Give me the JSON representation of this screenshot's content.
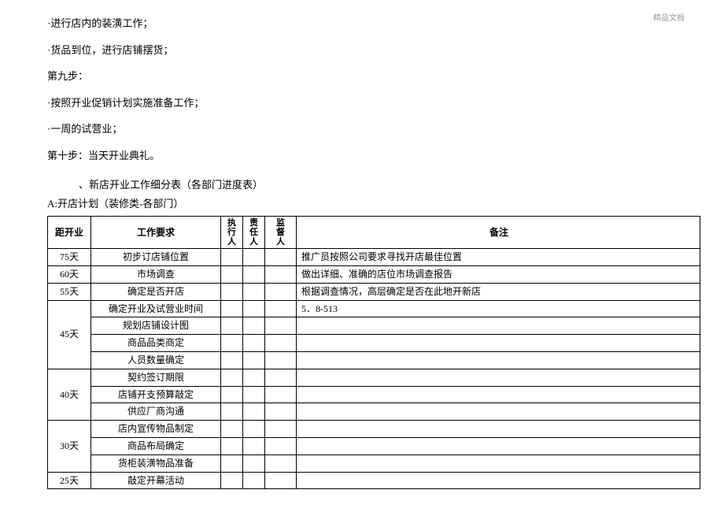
{
  "watermark": "精品文档",
  "bullets": [
    "·进行店内的装潢工作；",
    "·货品到位，进行店铺摆货；",
    "第九步：",
    "·按照开业促销计划实施准备工作；",
    "·一周的试营业；",
    "第十步：当天开业典礼。"
  ],
  "section_title": "、新店开业工作细分表（各部门进度表）",
  "sub_title": "A:开店计划（装修类-各部门）",
  "table": {
    "headers": {
      "days": "距开业",
      "req": "工作要求",
      "exec": "执行人",
      "resp": "责任人",
      "sup": "监督人",
      "note": "备注"
    },
    "groups": [
      {
        "days": "75天",
        "rows": [
          {
            "req": "初步订店铺位置",
            "note": "推广员按照公司要求寻找开店最佳位置"
          }
        ]
      },
      {
        "days": "60天",
        "rows": [
          {
            "req": "市场调查",
            "note": "做出详细、准确的店位市场调查报告"
          }
        ]
      },
      {
        "days": "55天",
        "rows": [
          {
            "req": "确定是否开店",
            "note": "根据调查情况，高层确定是否在此地开新店"
          }
        ]
      },
      {
        "days": "45天",
        "rows": [
          {
            "req": "确定开业及试营业时间",
            "note": "5．8-513"
          },
          {
            "req": "规划店铺设计图",
            "note": ""
          },
          {
            "req": "商品品类商定",
            "note": ""
          },
          {
            "req": "人员数量确定",
            "note": ""
          }
        ]
      },
      {
        "days": "40天",
        "rows": [
          {
            "req": "契约签订期限",
            "note": ""
          },
          {
            "req": "店铺开支预算敲定",
            "note": ""
          },
          {
            "req": "供应厂商沟通",
            "note": ""
          }
        ]
      },
      {
        "days": "30天",
        "rows": [
          {
            "req": "店内宣传物品制定",
            "note": ""
          },
          {
            "req": "商品布局确定",
            "note": ""
          },
          {
            "req": "货柜装潢物品准备",
            "note": ""
          }
        ]
      },
      {
        "days": "25天",
        "rows": [
          {
            "req": "敲定开幕活动",
            "note": ""
          }
        ]
      }
    ]
  }
}
